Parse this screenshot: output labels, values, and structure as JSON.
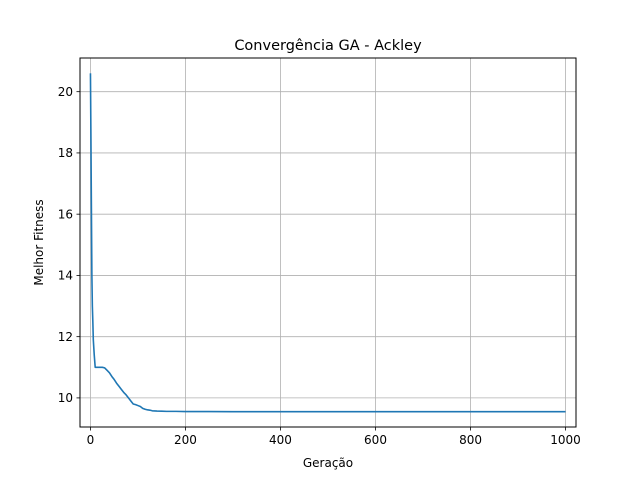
{
  "chart_data": {
    "type": "line",
    "title": "Convergência GA - Ackley",
    "xlabel": "Geração",
    "ylabel": "Melhor Fitness",
    "xlim": [
      -22,
      1022
    ],
    "ylim": [
      9.05,
      21.1
    ],
    "xticks": [
      0,
      200,
      400,
      600,
      800,
      1000
    ],
    "yticks": [
      10,
      12,
      14,
      16,
      18,
      20
    ],
    "grid": true,
    "legend": "none",
    "colors": {
      "line": "#1f77b4",
      "grid": "#b0b0b0",
      "axes": "#000000"
    },
    "series": [
      {
        "x": [
          0,
          1,
          2,
          3,
          4,
          5,
          6,
          8,
          10,
          15,
          20,
          25,
          30,
          35,
          40,
          45,
          50,
          55,
          60,
          65,
          70,
          75,
          80,
          85,
          90,
          95,
          100,
          105,
          110,
          115,
          120,
          125,
          130,
          140,
          150,
          160,
          180,
          200,
          250,
          300,
          400,
          500,
          600,
          700,
          800,
          900,
          1000
        ],
        "y": [
          20.6,
          18.5,
          16.2,
          14.0,
          13.0,
          12.5,
          11.9,
          11.4,
          11.0,
          11.0,
          11.0,
          11.0,
          10.98,
          10.9,
          10.82,
          10.7,
          10.6,
          10.48,
          10.38,
          10.28,
          10.18,
          10.1,
          10.0,
          9.9,
          9.8,
          9.78,
          9.75,
          9.72,
          9.66,
          9.63,
          9.61,
          9.6,
          9.58,
          9.57,
          9.565,
          9.56,
          9.56,
          9.555,
          9.555,
          9.55,
          9.55,
          9.55,
          9.55,
          9.55,
          9.55,
          9.55,
          9.55
        ]
      }
    ]
  }
}
